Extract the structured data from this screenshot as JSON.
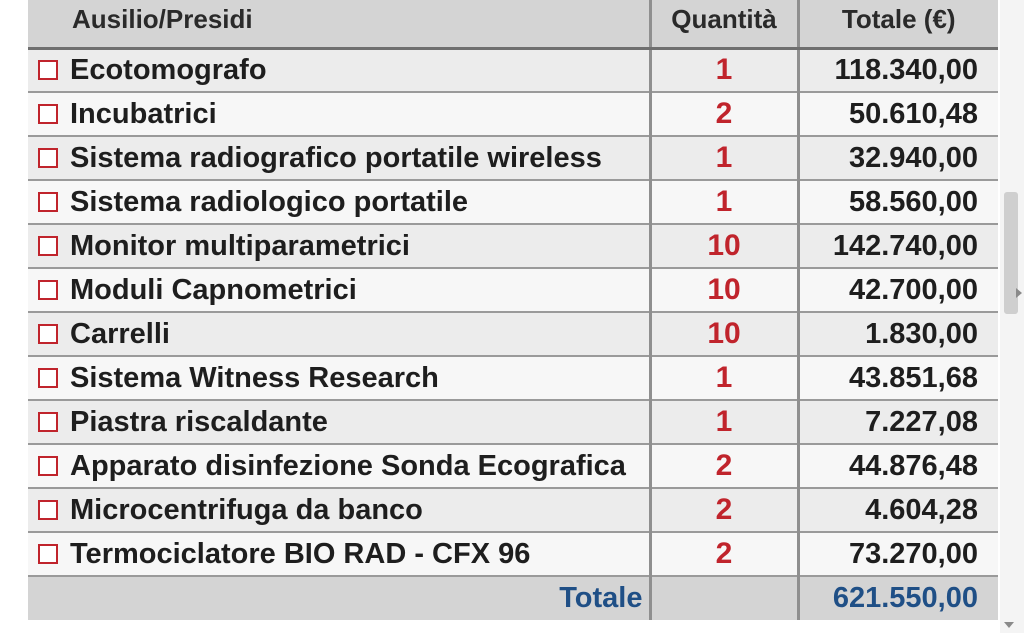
{
  "table": {
    "headers": {
      "item": "Ausilio/Presidi",
      "quantity": "Quantità",
      "total": "Totale (€)"
    },
    "rows": [
      {
        "item": "Ecotomografo",
        "quantity": "1",
        "total": "118.340,00"
      },
      {
        "item": "Incubatrici",
        "quantity": "2",
        "total": "50.610,48"
      },
      {
        "item": "Sistema radiografico portatile wireless",
        "quantity": "1",
        "total": "32.940,00"
      },
      {
        "item": "Sistema radiologico portatile",
        "quantity": "1",
        "total": "58.560,00"
      },
      {
        "item": "Monitor multiparametrici",
        "quantity": "10",
        "total": "142.740,00"
      },
      {
        "item": "Moduli Capnometrici",
        "quantity": "10",
        "total": "42.700,00"
      },
      {
        "item": "Carrelli",
        "quantity": "10",
        "total": "1.830,00"
      },
      {
        "item": "Sistema Witness Research",
        "quantity": "1",
        "total": "43.851,68"
      },
      {
        "item": "Piastra riscaldante",
        "quantity": "1",
        "total": "7.227,08"
      },
      {
        "item": "Apparato disinfezione Sonda Ecografica",
        "quantity": "2",
        "total": "44.876,48"
      },
      {
        "item": "Microcentrifuga da banco",
        "quantity": "2",
        "total": "4.604,28"
      },
      {
        "item": "Termociclatore BIO RAD - CFX 96",
        "quantity": "2",
        "total": "73.270,00"
      }
    ],
    "footer": {
      "label": "Totale",
      "total": "621.550,00"
    }
  },
  "colors": {
    "checkbox_border": "#c0242c",
    "quantity_text": "#c0242c",
    "footer_text": "#1f4f86",
    "header_bg": "#d4d4d4"
  },
  "icons": {
    "row_marker": "checkbox-icon",
    "scroll_right": "chevron-right-icon",
    "scroll_down": "chevron-down-icon"
  }
}
